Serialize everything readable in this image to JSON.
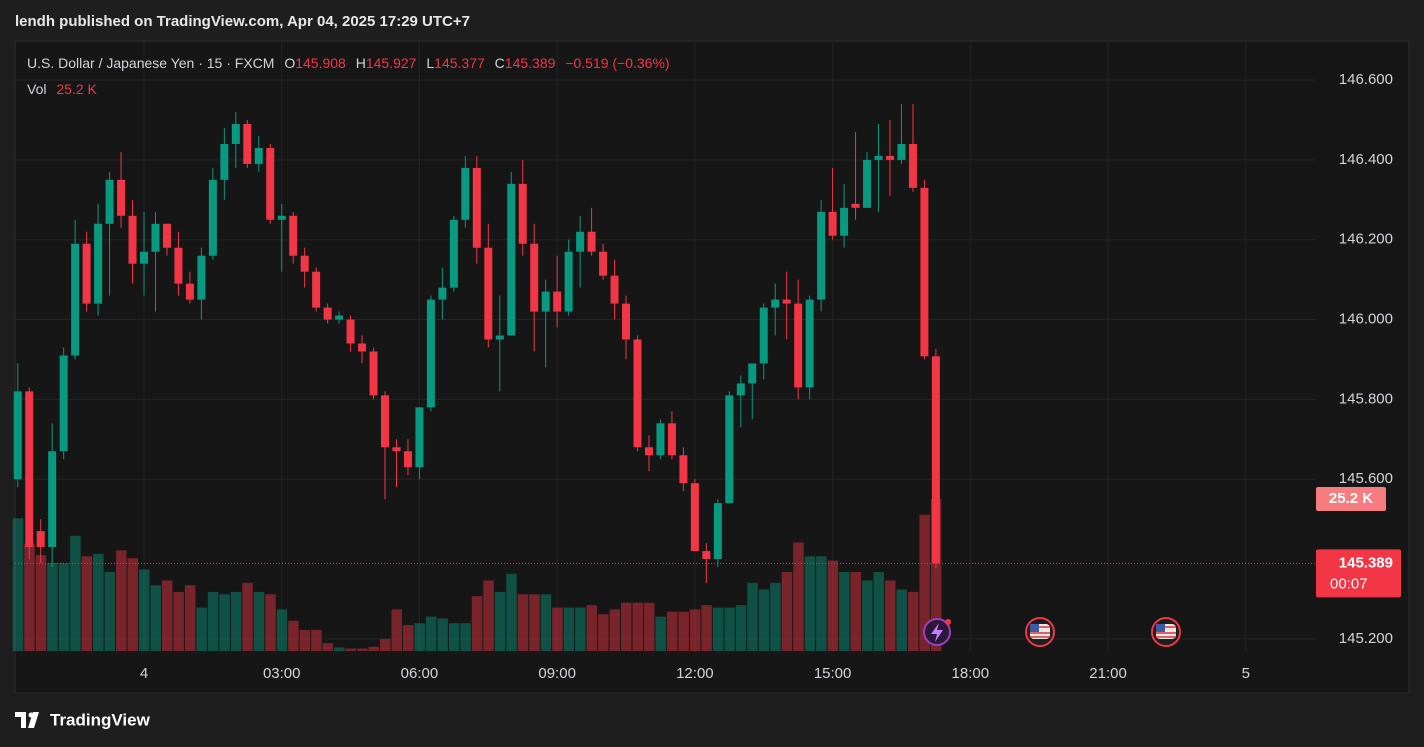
{
  "header": {
    "publisher": "lendh published on TradingView.com, Apr 04, 2025 17:29 UTC+7"
  },
  "footer": {
    "brand": "TradingView"
  },
  "chart_data": {
    "type": "candlestick",
    "symbol": "U.S. Dollar / Japanese Yen · 15 · FXCM",
    "ohlc_labels": [
      "O",
      "H",
      "L",
      "C"
    ],
    "change_label": "−0.519 (−0.36%)",
    "volume_title": "Vol",
    "last_volume_label": "25.2 K",
    "countdown": "00:07",
    "up_color": "#089981",
    "down_color": "#f23645",
    "grid": true,
    "xlim": [
      -2.81,
      25.53
    ],
    "xticks": [
      {
        "value": 0,
        "label": "4"
      },
      {
        "value": 3,
        "label": "03:00"
      },
      {
        "value": 6,
        "label": "06:00"
      },
      {
        "value": 9,
        "label": "09:00"
      },
      {
        "value": 12,
        "label": "12:00"
      },
      {
        "value": 15,
        "label": "15:00"
      },
      {
        "value": 18,
        "label": "18:00"
      },
      {
        "value": 21,
        "label": "21:00"
      },
      {
        "value": 24,
        "label": "5"
      }
    ],
    "ylim": [
      145.167,
      146.698
    ],
    "yticks": [
      {
        "value": 145.2,
        "label": "145.200"
      },
      {
        "value": 145.6,
        "label": "145.600"
      },
      {
        "value": 145.8,
        "label": "145.800"
      },
      {
        "value": 146.0,
        "label": "146.000"
      },
      {
        "value": 146.2,
        "label": "146.200"
      },
      {
        "value": 146.4,
        "label": "146.400"
      },
      {
        "value": 146.6,
        "label": "146.600"
      }
    ],
    "x": [
      -2.75,
      -2.5,
      -2.25,
      -2,
      -1.75,
      -1.5,
      -1.25,
      -1,
      -0.75,
      -0.5,
      -0.25,
      0,
      0.25,
      0.5,
      0.75,
      1,
      1.25,
      1.5,
      1.75,
      2,
      2.25,
      2.5,
      2.75,
      3,
      3.25,
      3.5,
      3.75,
      4,
      4.25,
      4.5,
      4.75,
      5,
      5.25,
      5.5,
      5.75,
      6,
      6.25,
      6.5,
      6.75,
      7,
      7.25,
      7.5,
      7.75,
      8,
      8.25,
      8.5,
      8.75,
      9,
      9.25,
      9.5,
      9.75,
      10,
      10.25,
      10.5,
      10.75,
      11,
      11.25,
      11.5,
      11.75,
      12,
      12.25,
      12.5,
      12.75,
      13,
      13.25,
      13.5,
      13.75,
      14,
      14.25,
      14.5,
      14.75,
      15,
      15.25,
      15.5,
      15.75,
      16,
      16.25,
      16.5,
      16.75,
      17,
      17.25
    ],
    "open": [
      145.6,
      145.82,
      145.47,
      145.43,
      145.67,
      145.91,
      146.19,
      146.04,
      146.24,
      146.35,
      146.26,
      146.14,
      146.17,
      146.24,
      146.18,
      146.09,
      146.05,
      146.16,
      146.35,
      146.44,
      146.49,
      146.39,
      146.43,
      146.25,
      146.26,
      146.16,
      146.12,
      146.03,
      146.0,
      146.0,
      145.94,
      145.92,
      145.81,
      145.68,
      145.67,
      145.63,
      145.78,
      146.05,
      146.08,
      146.25,
      146.38,
      146.18,
      145.95,
      145.96,
      146.34,
      146.19,
      146.02,
      146.07,
      146.02,
      146.17,
      146.22,
      146.17,
      146.11,
      146.04,
      145.95,
      145.68,
      145.66,
      145.74,
      145.66,
      145.59,
      145.42,
      145.4,
      145.54,
      145.81,
      145.84,
      145.89,
      146.03,
      146.05,
      146.04,
      145.83,
      146.05,
      146.27,
      146.21,
      146.29,
      146.28,
      146.4,
      146.41,
      146.4,
      146.44,
      146.33,
      145.908
    ],
    "high": [
      145.89,
      145.83,
      145.5,
      145.74,
      145.93,
      146.25,
      146.22,
      146.29,
      146.37,
      146.42,
      146.3,
      146.27,
      146.27,
      146.24,
      146.22,
      146.12,
      146.18,
      146.38,
      146.48,
      146.52,
      146.5,
      146.46,
      146.44,
      146.29,
      146.27,
      146.18,
      146.13,
      146.04,
      146.02,
      146.01,
      145.96,
      145.93,
      145.82,
      145.7,
      145.7,
      145.78,
      146.06,
      146.13,
      146.26,
      146.41,
      146.41,
      146.24,
      146.06,
      146.37,
      146.4,
      146.24,
      146.1,
      146.16,
      146.2,
      146.26,
      146.28,
      146.19,
      146.15,
      146.06,
      145.96,
      145.71,
      145.75,
      145.77,
      145.68,
      145.6,
      145.44,
      145.55,
      145.82,
      145.86,
      145.89,
      146.04,
      146.09,
      146.12,
      146.1,
      146.06,
      146.3,
      146.38,
      146.34,
      146.47,
      146.42,
      146.49,
      146.5,
      146.54,
      146.54,
      146.35,
      145.927
    ],
    "low": [
      145.58,
      145.4,
      145.39,
      145.38,
      145.65,
      145.9,
      146.02,
      146.01,
      146.06,
      146.23,
      146.09,
      146.06,
      146.02,
      146.16,
      146.06,
      146.04,
      146.0,
      146.15,
      146.3,
      146.38,
      146.38,
      146.37,
      146.24,
      146.12,
      146.14,
      146.08,
      146.02,
      145.99,
      145.99,
      145.92,
      145.89,
      145.8,
      145.55,
      145.58,
      145.61,
      145.6,
      145.77,
      146.0,
      146.07,
      146.23,
      146.14,
      145.93,
      145.82,
      145.96,
      146.16,
      145.92,
      145.88,
      145.98,
      146.01,
      146.08,
      146.16,
      146.1,
      146.0,
      145.9,
      145.67,
      145.62,
      145.65,
      145.65,
      145.57,
      145.42,
      145.34,
      145.38,
      145.54,
      145.73,
      145.75,
      145.85,
      145.96,
      145.95,
      145.8,
      145.8,
      146.02,
      146.2,
      146.18,
      146.25,
      146.28,
      146.27,
      146.31,
      146.39,
      146.32,
      145.9,
      145.377
    ],
    "close": [
      145.82,
      145.43,
      145.43,
      145.67,
      145.91,
      146.19,
      146.04,
      146.24,
      146.35,
      146.26,
      146.14,
      146.17,
      146.24,
      146.18,
      146.09,
      146.05,
      146.16,
      146.35,
      146.44,
      146.49,
      146.39,
      146.43,
      146.25,
      146.26,
      146.16,
      146.12,
      146.03,
      146.0,
      146.01,
      145.94,
      145.92,
      145.81,
      145.68,
      145.67,
      145.63,
      145.78,
      146.05,
      146.08,
      146.25,
      146.38,
      146.18,
      145.95,
      145.96,
      146.34,
      146.19,
      146.02,
      146.07,
      146.02,
      146.17,
      146.22,
      146.17,
      146.11,
      146.04,
      145.95,
      145.68,
      145.66,
      145.74,
      145.66,
      145.59,
      145.42,
      145.4,
      145.54,
      145.81,
      145.84,
      145.89,
      146.03,
      146.05,
      146.04,
      145.83,
      146.05,
      146.27,
      146.21,
      146.28,
      146.28,
      146.4,
      146.41,
      146.4,
      146.44,
      146.33,
      145.908,
      145.389
    ],
    "volume": [
      22.0,
      17.8,
      15.9,
      14.6,
      14.6,
      19.1,
      15.7,
      16.1,
      13.1,
      16.7,
      15.4,
      13.5,
      10.9,
      11.7,
      9.8,
      10.9,
      7.2,
      9.8,
      9.4,
      9.8,
      11.3,
      9.8,
      9.4,
      6.9,
      5.0,
      3.5,
      3.5,
      1.3,
      0.6,
      0.4,
      0.4,
      0.7,
      2.0,
      6.9,
      4.3,
      4.6,
      5.7,
      5.4,
      4.6,
      4.6,
      9.1,
      11.7,
      9.8,
      12.8,
      9.4,
      9.4,
      9.4,
      7.2,
      7.2,
      7.2,
      7.6,
      6.1,
      6.9,
      8.0,
      8.0,
      8.0,
      5.7,
      6.5,
      6.5,
      6.9,
      7.6,
      7.2,
      7.2,
      7.6,
      11.3,
      10.2,
      11.3,
      13.1,
      18.0,
      15.7,
      15.7,
      15.0,
      13.1,
      13.1,
      11.7,
      13.1,
      11.7,
      10.2,
      9.8,
      22.6,
      25.2
    ]
  }
}
